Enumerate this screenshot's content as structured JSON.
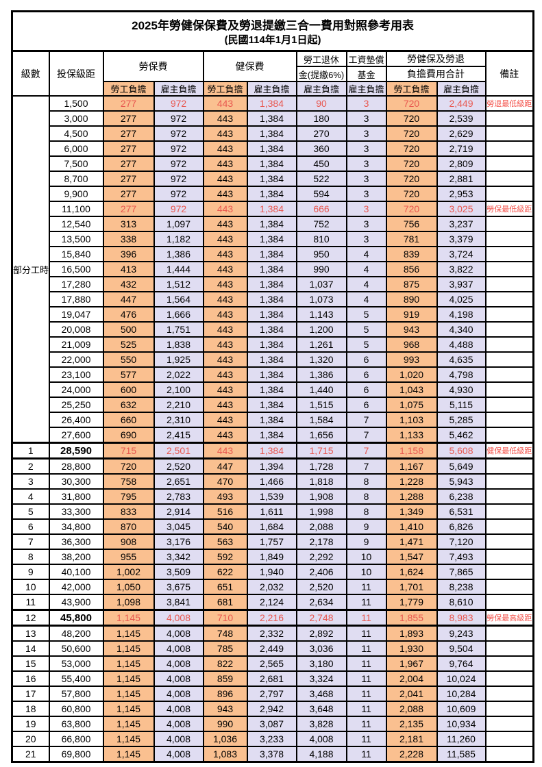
{
  "title": "2025年勞健保保費及勞退提繳三合一費用對照參考用表",
  "subtitle": "(民國114年1月1日起)",
  "header": {
    "level": "級數",
    "bracket": "投保級距",
    "labor_insurance": "勞保費",
    "health_insurance": "健保費",
    "pension_line1": "勞工退休",
    "pension_line2": "金(提繳6%)",
    "wage_fund_line1": "工資墊償",
    "wage_fund_line2": "基金",
    "total_line1": "勞健保及勞退",
    "total_line2": "負擔費用合計",
    "remark": "備註",
    "employee": "勞工負擔",
    "employer": "雇主負擔"
  },
  "part_time_label": "部分工時",
  "colors": {
    "employee_fill": "#FAC090",
    "employer_fill": "#E0DDF2",
    "highlight_text": "#E8574F",
    "remark_text": "#F4534B",
    "border": "#000000"
  },
  "rows": [
    {
      "level": "",
      "bracket": "1,500",
      "labor_emp": "277",
      "labor_er": "972",
      "health_emp": "443",
      "health_er": "1,384",
      "pension_er": "90",
      "fund_er": "3",
      "total_emp": "720",
      "total_er": "2,449",
      "remark": "勞退最低級距",
      "red": true,
      "bold": false
    },
    {
      "level": "",
      "bracket": "3,000",
      "labor_emp": "277",
      "labor_er": "972",
      "health_emp": "443",
      "health_er": "1,384",
      "pension_er": "180",
      "fund_er": "3",
      "total_emp": "720",
      "total_er": "2,539",
      "remark": "",
      "red": false,
      "bold": false
    },
    {
      "level": "",
      "bracket": "4,500",
      "labor_emp": "277",
      "labor_er": "972",
      "health_emp": "443",
      "health_er": "1,384",
      "pension_er": "270",
      "fund_er": "3",
      "total_emp": "720",
      "total_er": "2,629",
      "remark": "",
      "red": false,
      "bold": false
    },
    {
      "level": "",
      "bracket": "6,000",
      "labor_emp": "277",
      "labor_er": "972",
      "health_emp": "443",
      "health_er": "1,384",
      "pension_er": "360",
      "fund_er": "3",
      "total_emp": "720",
      "total_er": "2,719",
      "remark": "",
      "red": false,
      "bold": false
    },
    {
      "level": "",
      "bracket": "7,500",
      "labor_emp": "277",
      "labor_er": "972",
      "health_emp": "443",
      "health_er": "1,384",
      "pension_er": "450",
      "fund_er": "3",
      "total_emp": "720",
      "total_er": "2,809",
      "remark": "",
      "red": false,
      "bold": false
    },
    {
      "level": "",
      "bracket": "8,700",
      "labor_emp": "277",
      "labor_er": "972",
      "health_emp": "443",
      "health_er": "1,384",
      "pension_er": "522",
      "fund_er": "3",
      "total_emp": "720",
      "total_er": "2,881",
      "remark": "",
      "red": false,
      "bold": false
    },
    {
      "level": "",
      "bracket": "9,900",
      "labor_emp": "277",
      "labor_er": "972",
      "health_emp": "443",
      "health_er": "1,384",
      "pension_er": "594",
      "fund_er": "3",
      "total_emp": "720",
      "total_er": "2,953",
      "remark": "",
      "red": false,
      "bold": false
    },
    {
      "level": "",
      "bracket": "11,100",
      "labor_emp": "277",
      "labor_er": "972",
      "health_emp": "443",
      "health_er": "1,384",
      "pension_er": "666",
      "fund_er": "3",
      "total_emp": "720",
      "total_er": "3,025",
      "remark": "勞保最低級距",
      "red": true,
      "bold": false
    },
    {
      "level": "",
      "bracket": "12,540",
      "labor_emp": "313",
      "labor_er": "1,097",
      "health_emp": "443",
      "health_er": "1,384",
      "pension_er": "752",
      "fund_er": "3",
      "total_emp": "756",
      "total_er": "3,237",
      "remark": "",
      "red": false,
      "bold": false
    },
    {
      "level": "",
      "bracket": "13,500",
      "labor_emp": "338",
      "labor_er": "1,182",
      "health_emp": "443",
      "health_er": "1,384",
      "pension_er": "810",
      "fund_er": "3",
      "total_emp": "781",
      "total_er": "3,379",
      "remark": "",
      "red": false,
      "bold": false
    },
    {
      "level": "",
      "bracket": "15,840",
      "labor_emp": "396",
      "labor_er": "1,386",
      "health_emp": "443",
      "health_er": "1,384",
      "pension_er": "950",
      "fund_er": "4",
      "total_emp": "839",
      "total_er": "3,724",
      "remark": "",
      "red": false,
      "bold": false
    },
    {
      "level": "",
      "bracket": "16,500",
      "labor_emp": "413",
      "labor_er": "1,444",
      "health_emp": "443",
      "health_er": "1,384",
      "pension_er": "990",
      "fund_er": "4",
      "total_emp": "856",
      "total_er": "3,822",
      "remark": "",
      "red": false,
      "bold": false
    },
    {
      "level": "",
      "bracket": "17,280",
      "labor_emp": "432",
      "labor_er": "1,512",
      "health_emp": "443",
      "health_er": "1,384",
      "pension_er": "1,037",
      "fund_er": "4",
      "total_emp": "875",
      "total_er": "3,937",
      "remark": "",
      "red": false,
      "bold": false
    },
    {
      "level": "",
      "bracket": "17,880",
      "labor_emp": "447",
      "labor_er": "1,564",
      "health_emp": "443",
      "health_er": "1,384",
      "pension_er": "1,073",
      "fund_er": "4",
      "total_emp": "890",
      "total_er": "4,025",
      "remark": "",
      "red": false,
      "bold": false
    },
    {
      "level": "",
      "bracket": "19,047",
      "labor_emp": "476",
      "labor_er": "1,666",
      "health_emp": "443",
      "health_er": "1,384",
      "pension_er": "1,143",
      "fund_er": "5",
      "total_emp": "919",
      "total_er": "4,198",
      "remark": "",
      "red": false,
      "bold": false
    },
    {
      "level": "",
      "bracket": "20,008",
      "labor_emp": "500",
      "labor_er": "1,751",
      "health_emp": "443",
      "health_er": "1,384",
      "pension_er": "1,200",
      "fund_er": "5",
      "total_emp": "943",
      "total_er": "4,340",
      "remark": "",
      "red": false,
      "bold": false
    },
    {
      "level": "",
      "bracket": "21,009",
      "labor_emp": "525",
      "labor_er": "1,838",
      "health_emp": "443",
      "health_er": "1,384",
      "pension_er": "1,261",
      "fund_er": "5",
      "total_emp": "968",
      "total_er": "4,488",
      "remark": "",
      "red": false,
      "bold": false
    },
    {
      "level": "",
      "bracket": "22,000",
      "labor_emp": "550",
      "labor_er": "1,925",
      "health_emp": "443",
      "health_er": "1,384",
      "pension_er": "1,320",
      "fund_er": "6",
      "total_emp": "993",
      "total_er": "4,635",
      "remark": "",
      "red": false,
      "bold": false
    },
    {
      "level": "",
      "bracket": "23,100",
      "labor_emp": "577",
      "labor_er": "2,022",
      "health_emp": "443",
      "health_er": "1,384",
      "pension_er": "1,386",
      "fund_er": "6",
      "total_emp": "1,020",
      "total_er": "4,798",
      "remark": "",
      "red": false,
      "bold": false
    },
    {
      "level": "",
      "bracket": "24,000",
      "labor_emp": "600",
      "labor_er": "2,100",
      "health_emp": "443",
      "health_er": "1,384",
      "pension_er": "1,440",
      "fund_er": "6",
      "total_emp": "1,043",
      "total_er": "4,930",
      "remark": "",
      "red": false,
      "bold": false
    },
    {
      "level": "",
      "bracket": "25,250",
      "labor_emp": "632",
      "labor_er": "2,210",
      "health_emp": "443",
      "health_er": "1,384",
      "pension_er": "1,515",
      "fund_er": "6",
      "total_emp": "1,075",
      "total_er": "5,115",
      "remark": "",
      "red": false,
      "bold": false
    },
    {
      "level": "",
      "bracket": "26,400",
      "labor_emp": "660",
      "labor_er": "2,310",
      "health_emp": "443",
      "health_er": "1,384",
      "pension_er": "1,584",
      "fund_er": "7",
      "total_emp": "1,103",
      "total_er": "5,285",
      "remark": "",
      "red": false,
      "bold": false
    },
    {
      "level": "",
      "bracket": "27,600",
      "labor_emp": "690",
      "labor_er": "2,415",
      "health_emp": "443",
      "health_er": "1,384",
      "pension_er": "1,656",
      "fund_er": "7",
      "total_emp": "1,133",
      "total_er": "5,462",
      "remark": "",
      "red": false,
      "bold": false
    },
    {
      "level": "1",
      "bracket": "28,590",
      "labor_emp": "715",
      "labor_er": "2,501",
      "health_emp": "443",
      "health_er": "1,384",
      "pension_er": "1,715",
      "fund_er": "7",
      "total_emp": "1,158",
      "total_er": "5,608",
      "remark": "健保最低級距",
      "red": true,
      "bold": true
    },
    {
      "level": "2",
      "bracket": "28,800",
      "labor_emp": "720",
      "labor_er": "2,520",
      "health_emp": "447",
      "health_er": "1,394",
      "pension_er": "1,728",
      "fund_er": "7",
      "total_emp": "1,167",
      "total_er": "5,649",
      "remark": "",
      "red": false,
      "bold": false
    },
    {
      "level": "3",
      "bracket": "30,300",
      "labor_emp": "758",
      "labor_er": "2,651",
      "health_emp": "470",
      "health_er": "1,466",
      "pension_er": "1,818",
      "fund_er": "8",
      "total_emp": "1,228",
      "total_er": "5,943",
      "remark": "",
      "red": false,
      "bold": false
    },
    {
      "level": "4",
      "bracket": "31,800",
      "labor_emp": "795",
      "labor_er": "2,783",
      "health_emp": "493",
      "health_er": "1,539",
      "pension_er": "1,908",
      "fund_er": "8",
      "total_emp": "1,288",
      "total_er": "6,238",
      "remark": "",
      "red": false,
      "bold": false
    },
    {
      "level": "5",
      "bracket": "33,300",
      "labor_emp": "833",
      "labor_er": "2,914",
      "health_emp": "516",
      "health_er": "1,611",
      "pension_er": "1,998",
      "fund_er": "8",
      "total_emp": "1,349",
      "total_er": "6,531",
      "remark": "",
      "red": false,
      "bold": false
    },
    {
      "level": "6",
      "bracket": "34,800",
      "labor_emp": "870",
      "labor_er": "3,045",
      "health_emp": "540",
      "health_er": "1,684",
      "pension_er": "2,088",
      "fund_er": "9",
      "total_emp": "1,410",
      "total_er": "6,826",
      "remark": "",
      "red": false,
      "bold": false
    },
    {
      "level": "7",
      "bracket": "36,300",
      "labor_emp": "908",
      "labor_er": "3,176",
      "health_emp": "563",
      "health_er": "1,757",
      "pension_er": "2,178",
      "fund_er": "9",
      "total_emp": "1,471",
      "total_er": "7,120",
      "remark": "",
      "red": false,
      "bold": false
    },
    {
      "level": "8",
      "bracket": "38,200",
      "labor_emp": "955",
      "labor_er": "3,342",
      "health_emp": "592",
      "health_er": "1,849",
      "pension_er": "2,292",
      "fund_er": "10",
      "total_emp": "1,547",
      "total_er": "7,493",
      "remark": "",
      "red": false,
      "bold": false
    },
    {
      "level": "9",
      "bracket": "40,100",
      "labor_emp": "1,002",
      "labor_er": "3,509",
      "health_emp": "622",
      "health_er": "1,940",
      "pension_er": "2,406",
      "fund_er": "10",
      "total_emp": "1,624",
      "total_er": "7,865",
      "remark": "",
      "red": false,
      "bold": false
    },
    {
      "level": "10",
      "bracket": "42,000",
      "labor_emp": "1,050",
      "labor_er": "3,675",
      "health_emp": "651",
      "health_er": "2,032",
      "pension_er": "2,520",
      "fund_er": "11",
      "total_emp": "1,701",
      "total_er": "8,238",
      "remark": "",
      "red": false,
      "bold": false
    },
    {
      "level": "11",
      "bracket": "43,900",
      "labor_emp": "1,098",
      "labor_er": "3,841",
      "health_emp": "681",
      "health_er": "2,124",
      "pension_er": "2,634",
      "fund_er": "11",
      "total_emp": "1,779",
      "total_er": "8,610",
      "remark": "",
      "red": false,
      "bold": false
    },
    {
      "level": "12",
      "bracket": "45,800",
      "labor_emp": "1,145",
      "labor_er": "4,008",
      "health_emp": "710",
      "health_er": "2,216",
      "pension_er": "2,748",
      "fund_er": "11",
      "total_emp": "1,855",
      "total_er": "8,983",
      "remark": "勞保最高級距",
      "red": true,
      "bold": true
    },
    {
      "level": "13",
      "bracket": "48,200",
      "labor_emp": "1,145",
      "labor_er": "4,008",
      "health_emp": "748",
      "health_er": "2,332",
      "pension_er": "2,892",
      "fund_er": "11",
      "total_emp": "1,893",
      "total_er": "9,243",
      "remark": "",
      "red": false,
      "bold": false
    },
    {
      "level": "14",
      "bracket": "50,600",
      "labor_emp": "1,145",
      "labor_er": "4,008",
      "health_emp": "785",
      "health_er": "2,449",
      "pension_er": "3,036",
      "fund_er": "11",
      "total_emp": "1,930",
      "total_er": "9,504",
      "remark": "",
      "red": false,
      "bold": false
    },
    {
      "level": "15",
      "bracket": "53,000",
      "labor_emp": "1,145",
      "labor_er": "4,008",
      "health_emp": "822",
      "health_er": "2,565",
      "pension_er": "3,180",
      "fund_er": "11",
      "total_emp": "1,967",
      "total_er": "9,764",
      "remark": "",
      "red": false,
      "bold": false
    },
    {
      "level": "16",
      "bracket": "55,400",
      "labor_emp": "1,145",
      "labor_er": "4,008",
      "health_emp": "859",
      "health_er": "2,681",
      "pension_er": "3,324",
      "fund_er": "11",
      "total_emp": "2,004",
      "total_er": "10,024",
      "remark": "",
      "red": false,
      "bold": false
    },
    {
      "level": "17",
      "bracket": "57,800",
      "labor_emp": "1,145",
      "labor_er": "4,008",
      "health_emp": "896",
      "health_er": "2,797",
      "pension_er": "3,468",
      "fund_er": "11",
      "total_emp": "2,041",
      "total_er": "10,284",
      "remark": "",
      "red": false,
      "bold": false
    },
    {
      "level": "18",
      "bracket": "60,800",
      "labor_emp": "1,145",
      "labor_er": "4,008",
      "health_emp": "943",
      "health_er": "2,942",
      "pension_er": "3,648",
      "fund_er": "11",
      "total_emp": "2,088",
      "total_er": "10,609",
      "remark": "",
      "red": false,
      "bold": false
    },
    {
      "level": "19",
      "bracket": "63,800",
      "labor_emp": "1,145",
      "labor_er": "4,008",
      "health_emp": "990",
      "health_er": "3,087",
      "pension_er": "3,828",
      "fund_er": "11",
      "total_emp": "2,135",
      "total_er": "10,934",
      "remark": "",
      "red": false,
      "bold": false
    },
    {
      "level": "20",
      "bracket": "66,800",
      "labor_emp": "1,145",
      "labor_er": "4,008",
      "health_emp": "1,036",
      "health_er": "3,233",
      "pension_er": "4,008",
      "fund_er": "11",
      "total_emp": "2,181",
      "total_er": "11,260",
      "remark": "",
      "red": false,
      "bold": false
    },
    {
      "level": "21",
      "bracket": "69,800",
      "labor_emp": "1,145",
      "labor_er": "4,008",
      "health_emp": "1,083",
      "health_er": "3,378",
      "pension_er": "4,188",
      "fund_er": "11",
      "total_emp": "2,228",
      "total_er": "11,585",
      "remark": "",
      "red": false,
      "bold": false
    }
  ]
}
